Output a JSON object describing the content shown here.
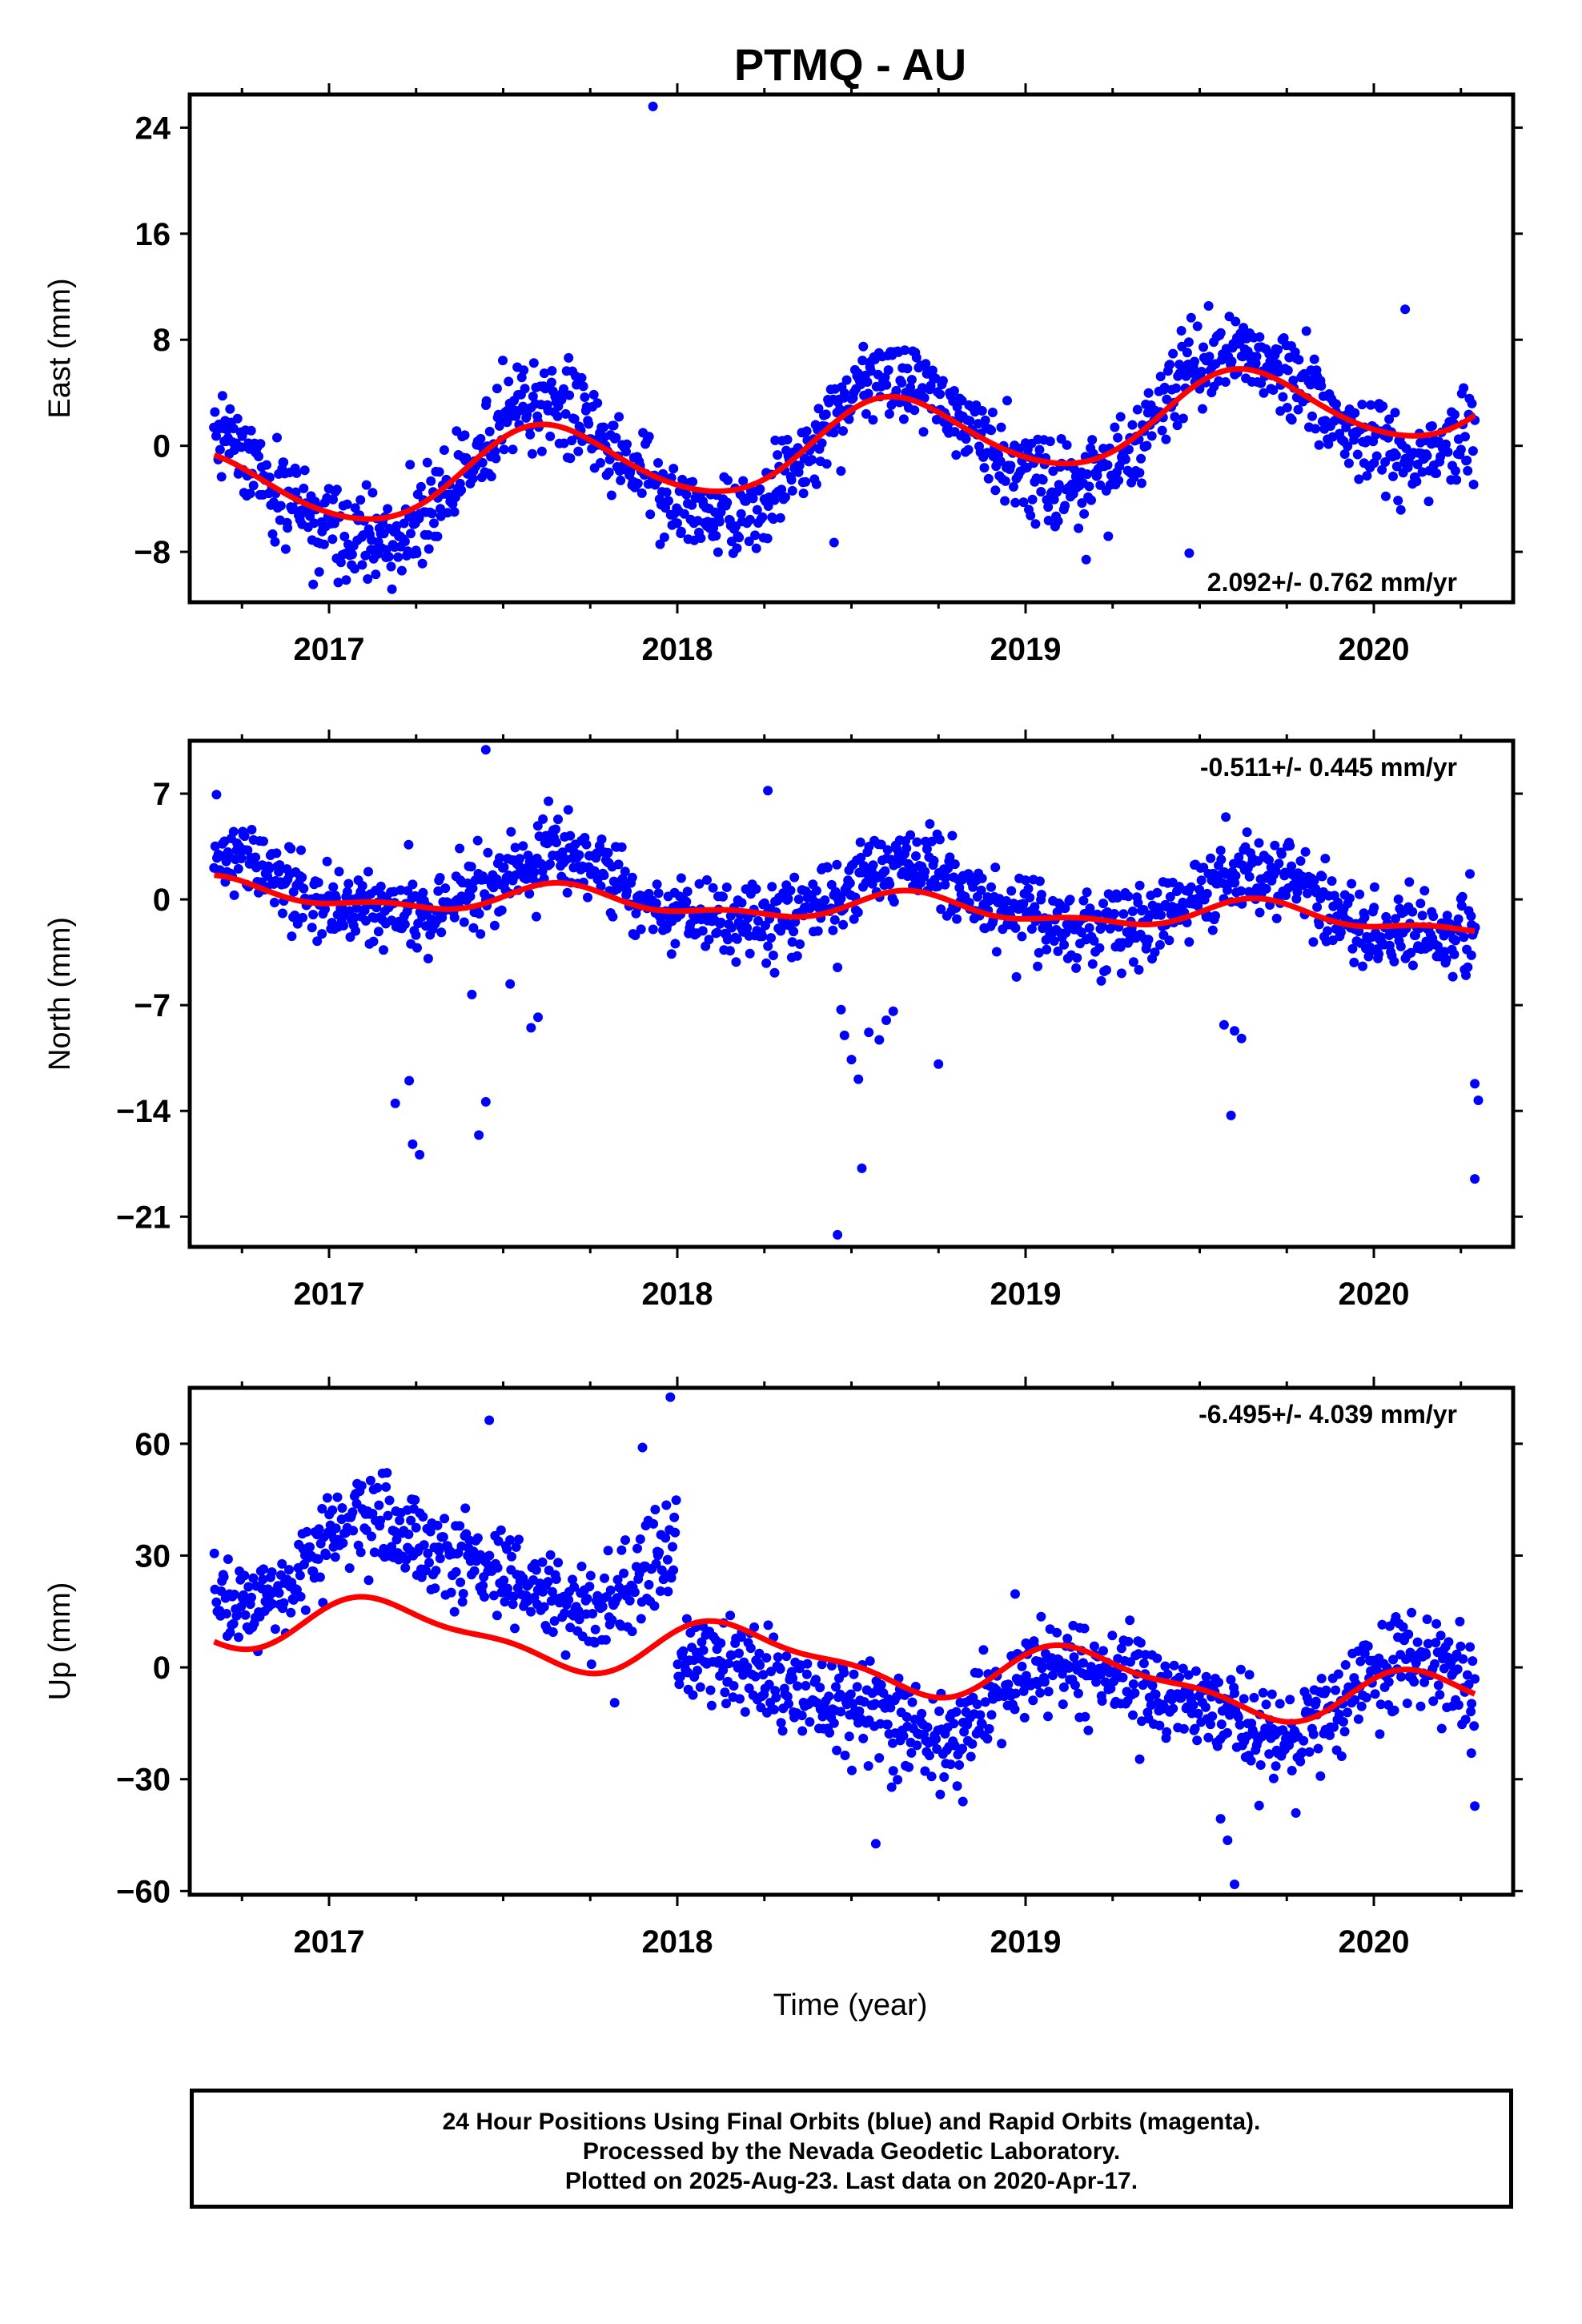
{
  "title": "PTMQ - AU",
  "xlabel": "Time (year)",
  "colors": {
    "points": "#0000ff",
    "fit": "#ff0000",
    "axes": "#000000"
  },
  "footer": {
    "line1": "24 Hour Positions Using Final Orbits (blue) and Rapid Orbits (magenta).",
    "line2": "Processed by the Nevada Geodetic Laboratory.",
    "line3": "Plotted on 2025-Aug-23. Last data on 2020-Apr-17."
  },
  "chart_data": [
    {
      "type": "scatter",
      "component": "east",
      "ylabel": "East (mm)",
      "rate_label": "2.092+/- 0.762 mm/yr",
      "rate_position": "bottom-right",
      "xlim": [
        2016.6,
        2020.4
      ],
      "ylim": [
        -11.8,
        26.5
      ],
      "x_ticks": [
        2017,
        2018,
        2019,
        2020
      ],
      "y_ticks": [
        -8,
        0,
        8,
        16,
        24
      ],
      "data_range": [
        2016.67,
        2020.29
      ],
      "fit": {
        "offset": -3.63,
        "rate": 2.092,
        "anchor_year": 2016.67,
        "cos": -2.3,
        "sin": -2.0,
        "cos2": 0.2,
        "sin2": 0.2
      },
      "scatter_sigma": 1.7,
      "outliers": [
        [
          2017.93,
          25.6
        ],
        [
          2020.09,
          10.3
        ],
        [
          2019.47,
          -8.1
        ],
        [
          2018.45,
          -7.3
        ]
      ]
    },
    {
      "type": "scatter",
      "component": "north",
      "ylabel": "North (mm)",
      "rate_label": "-0.511+/- 0.445 mm/yr",
      "rate_position": "top-right",
      "xlim": [
        2016.6,
        2020.4
      ],
      "ylim": [
        -23,
        10.5
      ],
      "x_ticks": [
        2017,
        2018,
        2019,
        2020
      ],
      "y_ticks": [
        -21,
        -14,
        -7,
        0,
        7
      ],
      "data_range": [
        2016.67,
        2020.29
      ],
      "fit": {
        "offset": 0.4,
        "rate": -0.511,
        "anchor_year": 2016.67,
        "cos": -0.35,
        "sin": -0.7,
        "cos2": -0.15,
        "sin2": 0.4
      },
      "scatter_sigma": 1.3,
      "outliers": [
        [
          2017.45,
          9.9
        ],
        [
          2018.26,
          7.2
        ],
        [
          2017.63,
          6.5
        ],
        [
          2017.19,
          -13.5
        ],
        [
          2017.23,
          -12.0
        ],
        [
          2017.24,
          -16.2
        ],
        [
          2017.26,
          -16.9
        ],
        [
          2017.41,
          -6.3
        ],
        [
          2017.43,
          -15.6
        ],
        [
          2017.45,
          -13.4
        ],
        [
          2017.52,
          -5.6
        ],
        [
          2017.58,
          -8.5
        ],
        [
          2017.6,
          -7.8
        ],
        [
          2018.46,
          -4.5
        ],
        [
          2018.47,
          -7.3
        ],
        [
          2018.48,
          -9.0
        ],
        [
          2018.5,
          -10.6
        ],
        [
          2018.52,
          -11.9
        ],
        [
          2018.53,
          -17.8
        ],
        [
          2018.46,
          -22.2
        ],
        [
          2018.55,
          -8.8
        ],
        [
          2018.58,
          -9.3
        ],
        [
          2018.6,
          -8.0
        ],
        [
          2018.62,
          -7.4
        ],
        [
          2018.75,
          -10.9
        ],
        [
          2019.57,
          -8.3
        ],
        [
          2019.59,
          -14.3
        ],
        [
          2019.6,
          -8.7
        ],
        [
          2019.62,
          -9.2
        ],
        [
          2020.28,
          -3.7
        ],
        [
          2020.29,
          -12.2
        ],
        [
          2020.3,
          -13.3
        ],
        [
          2020.29,
          -18.5
        ]
      ]
    },
    {
      "type": "scatter",
      "component": "up",
      "ylabel": "Up (mm)",
      "rate_label": "-6.495+/- 4.039 mm/yr",
      "rate_position": "top-right",
      "xlim": [
        2016.6,
        2020.4
      ],
      "ylim": [
        -61,
        75
      ],
      "x_ticks": [
        2017,
        2018,
        2019,
        2020
      ],
      "y_ticks": [
        -60,
        -30,
        0,
        30,
        60
      ],
      "data_range": [
        2016.67,
        2020.29
      ],
      "fit": {
        "offset": 13.6,
        "rate": -6.495,
        "anchor_year": 2016.67,
        "cos": 3.0,
        "sin": 6.2,
        "cos2": 2.0,
        "sin2": 1.5
      },
      "scatter_sigma": 6.5,
      "step": {
        "at": 2018.0,
        "before": 12.5,
        "after": -12.0
      },
      "outliers": [
        [
          2017.46,
          66.3
        ],
        [
          2017.98,
          72.5
        ],
        [
          2017.9,
          59.0
        ],
        [
          2017.82,
          -9.5
        ],
        [
          2018.57,
          -47.3
        ],
        [
          2018.82,
          -36.0
        ],
        [
          2019.56,
          -40.6
        ],
        [
          2019.58,
          -46.4
        ],
        [
          2019.6,
          -58.2
        ],
        [
          2020.29,
          -37.2
        ],
        [
          2020.28,
          -23.0
        ],
        [
          2018.97,
          19.7
        ]
      ]
    }
  ]
}
